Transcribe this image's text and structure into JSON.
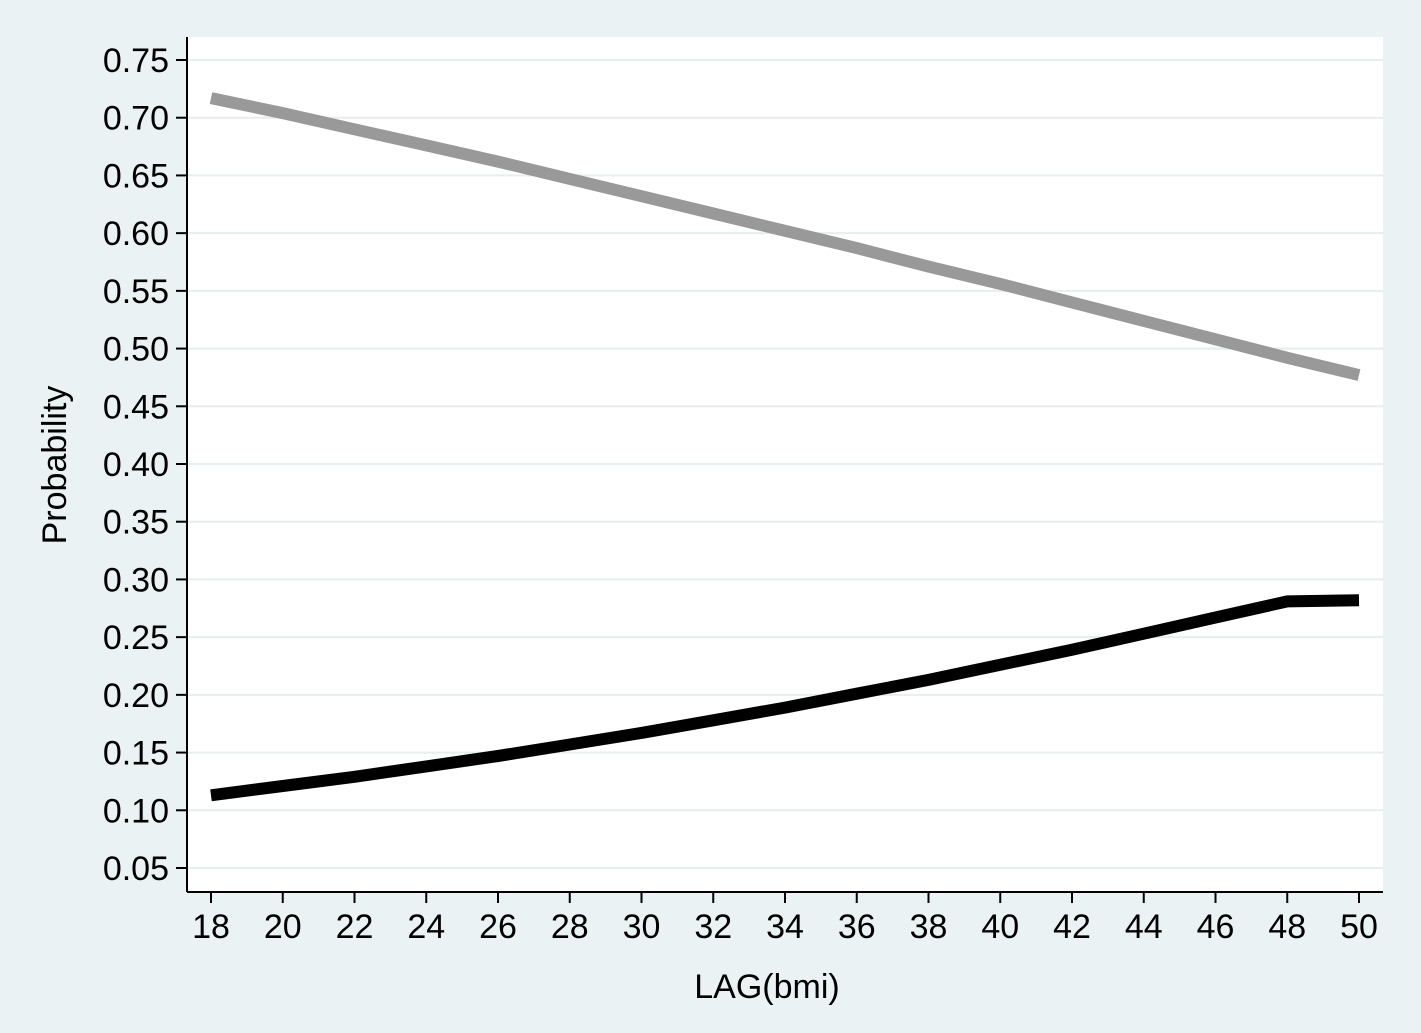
{
  "chart_data": {
    "type": "line",
    "title": "",
    "xlabel": "LAG(bmi)",
    "ylabel": "Probability",
    "xlim": [
      18,
      50
    ],
    "ylim": [
      0.05,
      0.75
    ],
    "x_ticks": [
      "18",
      "20",
      "22",
      "24",
      "26",
      "28",
      "30",
      "32",
      "34",
      "36",
      "38",
      "40",
      "42",
      "44",
      "46",
      "48",
      "50"
    ],
    "y_ticks": [
      "0.05",
      "0.10",
      "0.15",
      "0.20",
      "0.25",
      "0.30",
      "0.35",
      "0.40",
      "0.45",
      "0.50",
      "0.55",
      "0.60",
      "0.65",
      "0.70",
      "0.75"
    ],
    "grid": true,
    "legend": "none",
    "x": [
      18,
      20,
      22,
      24,
      26,
      28,
      30,
      32,
      34,
      36,
      38,
      40,
      42,
      44,
      46,
      48,
      50
    ],
    "series": [
      {
        "color": "#999999",
        "values": [
          0.717,
          0.704,
          0.69,
          0.676,
          0.662,
          0.647,
          0.632,
          0.617,
          0.602,
          0.587,
          0.571,
          0.556,
          0.54,
          0.524,
          0.508,
          0.492,
          0.477
        ]
      },
      {
        "color": "#000000",
        "values": [
          0.113,
          0.121,
          0.129,
          0.138,
          0.147,
          0.157,
          0.167,
          0.178,
          0.189,
          0.201,
          0.213,
          0.226,
          0.239,
          0.253,
          0.267,
          0.281,
          0.282
        ]
      }
    ]
  }
}
